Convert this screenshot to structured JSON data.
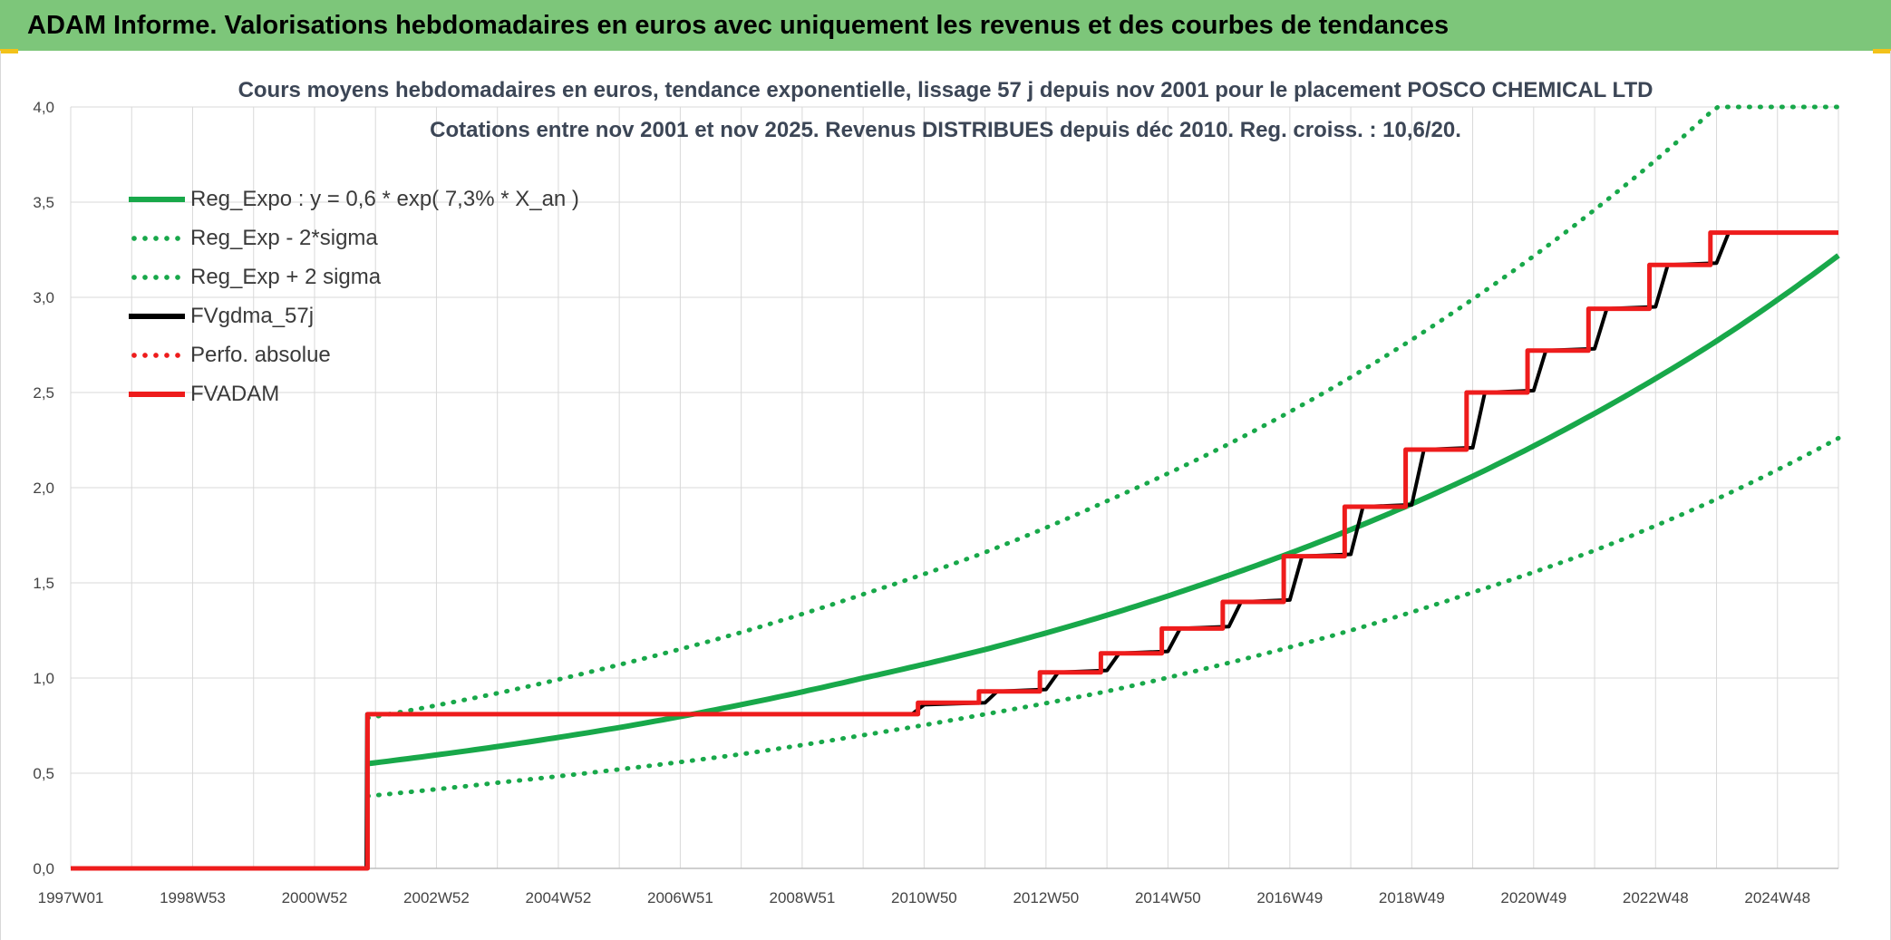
{
  "banner": {
    "title": "ADAM Informe. Valorisations hebdomadaires en euros avec uniquement les revenus et des courbes de tendances"
  },
  "colors": {
    "banner_bg": "#7dc67a",
    "accent_corner": "#f2c21a",
    "green": "#18a84a",
    "red": "#ee1c1c",
    "black": "#000000",
    "grid": "#d9d9d9"
  },
  "chart_data": {
    "type": "line",
    "title_line1": "Cours moyens hebdomadaires en euros, tendance exponentielle, lissage 57 j depuis nov 2001 pour le placement POSCO CHEMICAL LTD",
    "title_line2": "Cotations entre nov 2001 et nov 2025. Revenus DISTRIBUES depuis déc 2010. Reg. croiss. : 10,6/20.",
    "xlabel": "",
    "ylabel": "",
    "x_range": [
      1997.0,
      2026.0
    ],
    "ylim": [
      0,
      4.0
    ],
    "y_ticks": [
      "0,0",
      "0,5",
      "1,0",
      "1,5",
      "2,0",
      "2,5",
      "3,0",
      "3,5",
      "4,0"
    ],
    "x_ticks": [
      {
        "label": "1997W01",
        "x": 1997.0
      },
      {
        "label": "1998W53",
        "x": 1999.0
      },
      {
        "label": "2000W52",
        "x": 2001.0
      },
      {
        "label": "2002W52",
        "x": 2003.0
      },
      {
        "label": "2004W52",
        "x": 2005.0
      },
      {
        "label": "2006W51",
        "x": 2007.0
      },
      {
        "label": "2008W51",
        "x": 2009.0
      },
      {
        "label": "2010W50",
        "x": 2011.0
      },
      {
        "label": "2012W50",
        "x": 2013.0
      },
      {
        "label": "2014W50",
        "x": 2015.0
      },
      {
        "label": "2016W49",
        "x": 2017.0
      },
      {
        "label": "2018W49",
        "x": 2019.0
      },
      {
        "label": "2020W49",
        "x": 2021.0
      },
      {
        "label": "2022W48",
        "x": 2023.0
      },
      {
        "label": "2024W48",
        "x": 2025.0
      }
    ],
    "grid": true,
    "legend_position": "top-left",
    "series": [
      {
        "name": "Reg_Expo : y = 0,6 * exp( 7,3% *  X_an )",
        "style": "solid",
        "color": "#18a84a",
        "x": [
          2001.87,
          2004,
          2006,
          2008,
          2010,
          2012,
          2014,
          2016,
          2018,
          2020,
          2022,
          2024,
          2026
        ],
        "y": [
          0.55,
          0.64,
          0.74,
          0.86,
          1.0,
          1.15,
          1.33,
          1.54,
          1.78,
          2.06,
          2.39,
          2.77,
          3.22
        ]
      },
      {
        "name": "Reg_Exp - 2*sigma",
        "style": "dotted",
        "color": "#18a84a",
        "x": [
          2001.87,
          2004,
          2006,
          2008,
          2010,
          2012,
          2014,
          2016,
          2018,
          2020,
          2022,
          2024,
          2026
        ],
        "y": [
          0.38,
          0.45,
          0.52,
          0.6,
          0.7,
          0.81,
          0.93,
          1.08,
          1.25,
          1.45,
          1.67,
          1.94,
          2.26
        ]
      },
      {
        "name": "Reg_Exp + 2 sigma",
        "style": "dotted",
        "color": "#18a84a",
        "x": [
          2001.87,
          2004,
          2006,
          2008,
          2010,
          2012,
          2014,
          2016,
          2018,
          2020,
          2022,
          2023.0,
          2024.0,
          2026
        ],
        "y": [
          0.79,
          0.92,
          1.07,
          1.24,
          1.44,
          1.66,
          1.93,
          2.23,
          2.58,
          2.99,
          3.46,
          3.72,
          4.0,
          4.0
        ]
      },
      {
        "name": "FVgdma_57j",
        "style": "solid",
        "color": "#000000",
        "x": [
          1997.0,
          2001.85,
          2001.86,
          2010.8,
          2011.0,
          2012.0,
          2012.2,
          2013.0,
          2013.2,
          2014.0,
          2014.2,
          2015.0,
          2015.2,
          2016.0,
          2016.2,
          2017.0,
          2017.2,
          2018.0,
          2018.2,
          2019.0,
          2019.2,
          2020.0,
          2020.2,
          2021.0,
          2021.2,
          2022.0,
          2022.2,
          2023.0,
          2023.2,
          2024.0,
          2024.2,
          2026.0
        ],
        "y": [
          0.0,
          0.0,
          0.81,
          0.81,
          0.86,
          0.87,
          0.93,
          0.94,
          1.03,
          1.04,
          1.13,
          1.14,
          1.26,
          1.27,
          1.4,
          1.41,
          1.64,
          1.65,
          1.9,
          1.91,
          2.2,
          2.21,
          2.5,
          2.51,
          2.72,
          2.73,
          2.94,
          2.95,
          3.17,
          3.18,
          3.34,
          3.34
        ]
      },
      {
        "name": "Perfo. absolue",
        "style": "dotted",
        "color": "#ee1c1c",
        "x": [],
        "y": []
      },
      {
        "name": "FVADAM",
        "style": "step",
        "color": "#ee1c1c",
        "x": [
          1997.0,
          2001.87,
          2010.9,
          2011.9,
          2012.9,
          2013.9,
          2014.9,
          2015.9,
          2016.9,
          2017.9,
          2018.9,
          2019.9,
          2020.9,
          2021.9,
          2022.9,
          2023.9,
          2026.0
        ],
        "y": [
          0.0,
          0.81,
          0.87,
          0.93,
          1.03,
          1.13,
          1.26,
          1.4,
          1.64,
          1.9,
          2.2,
          2.5,
          2.72,
          2.94,
          3.17,
          3.34,
          3.34
        ]
      }
    ]
  }
}
